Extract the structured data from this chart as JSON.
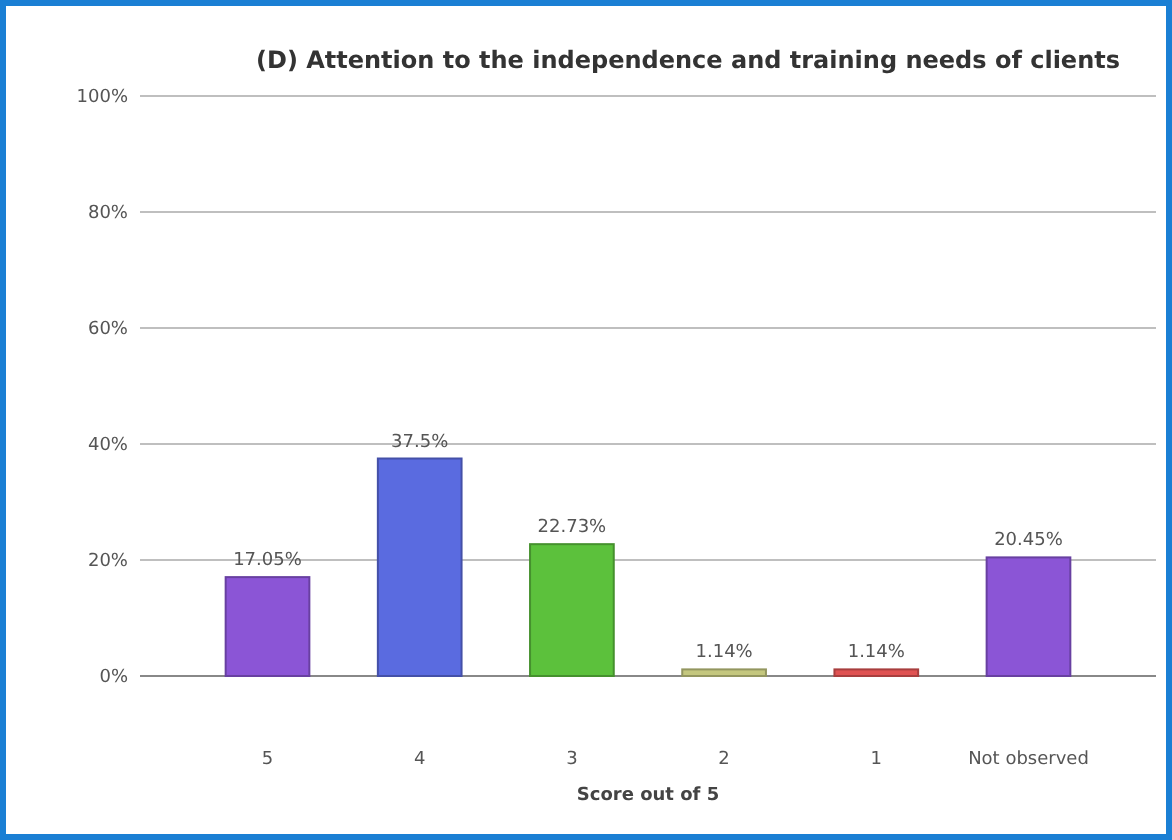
{
  "chart_data": {
    "type": "bar",
    "title": "(D) Attention to the independence and training needs of clients",
    "xlabel": "Score out of 5",
    "categories": [
      "5",
      "4",
      "3",
      "2",
      "1",
      "Not observed"
    ],
    "values": [
      17.05,
      37.5,
      22.73,
      1.14,
      1.14,
      20.45
    ],
    "value_labels": [
      "17.05%",
      "37.5%",
      "22.73%",
      "1.14%",
      "1.14%",
      "20.45%"
    ],
    "colors": [
      "#8b55d6",
      "#5a6be0",
      "#5cc13c",
      "#c4c77e",
      "#e05252",
      "#8b55d6"
    ],
    "ylim": [
      0,
      100
    ],
    "yticks": [
      {
        "value": 0,
        "label": "0%"
      },
      {
        "value": 20,
        "label": "20%"
      },
      {
        "value": 40,
        "label": "40%"
      },
      {
        "value": 60,
        "label": "60%"
      },
      {
        "value": 80,
        "label": "80%"
      },
      {
        "value": 100,
        "label": "100%"
      }
    ],
    "grid": "y"
  }
}
